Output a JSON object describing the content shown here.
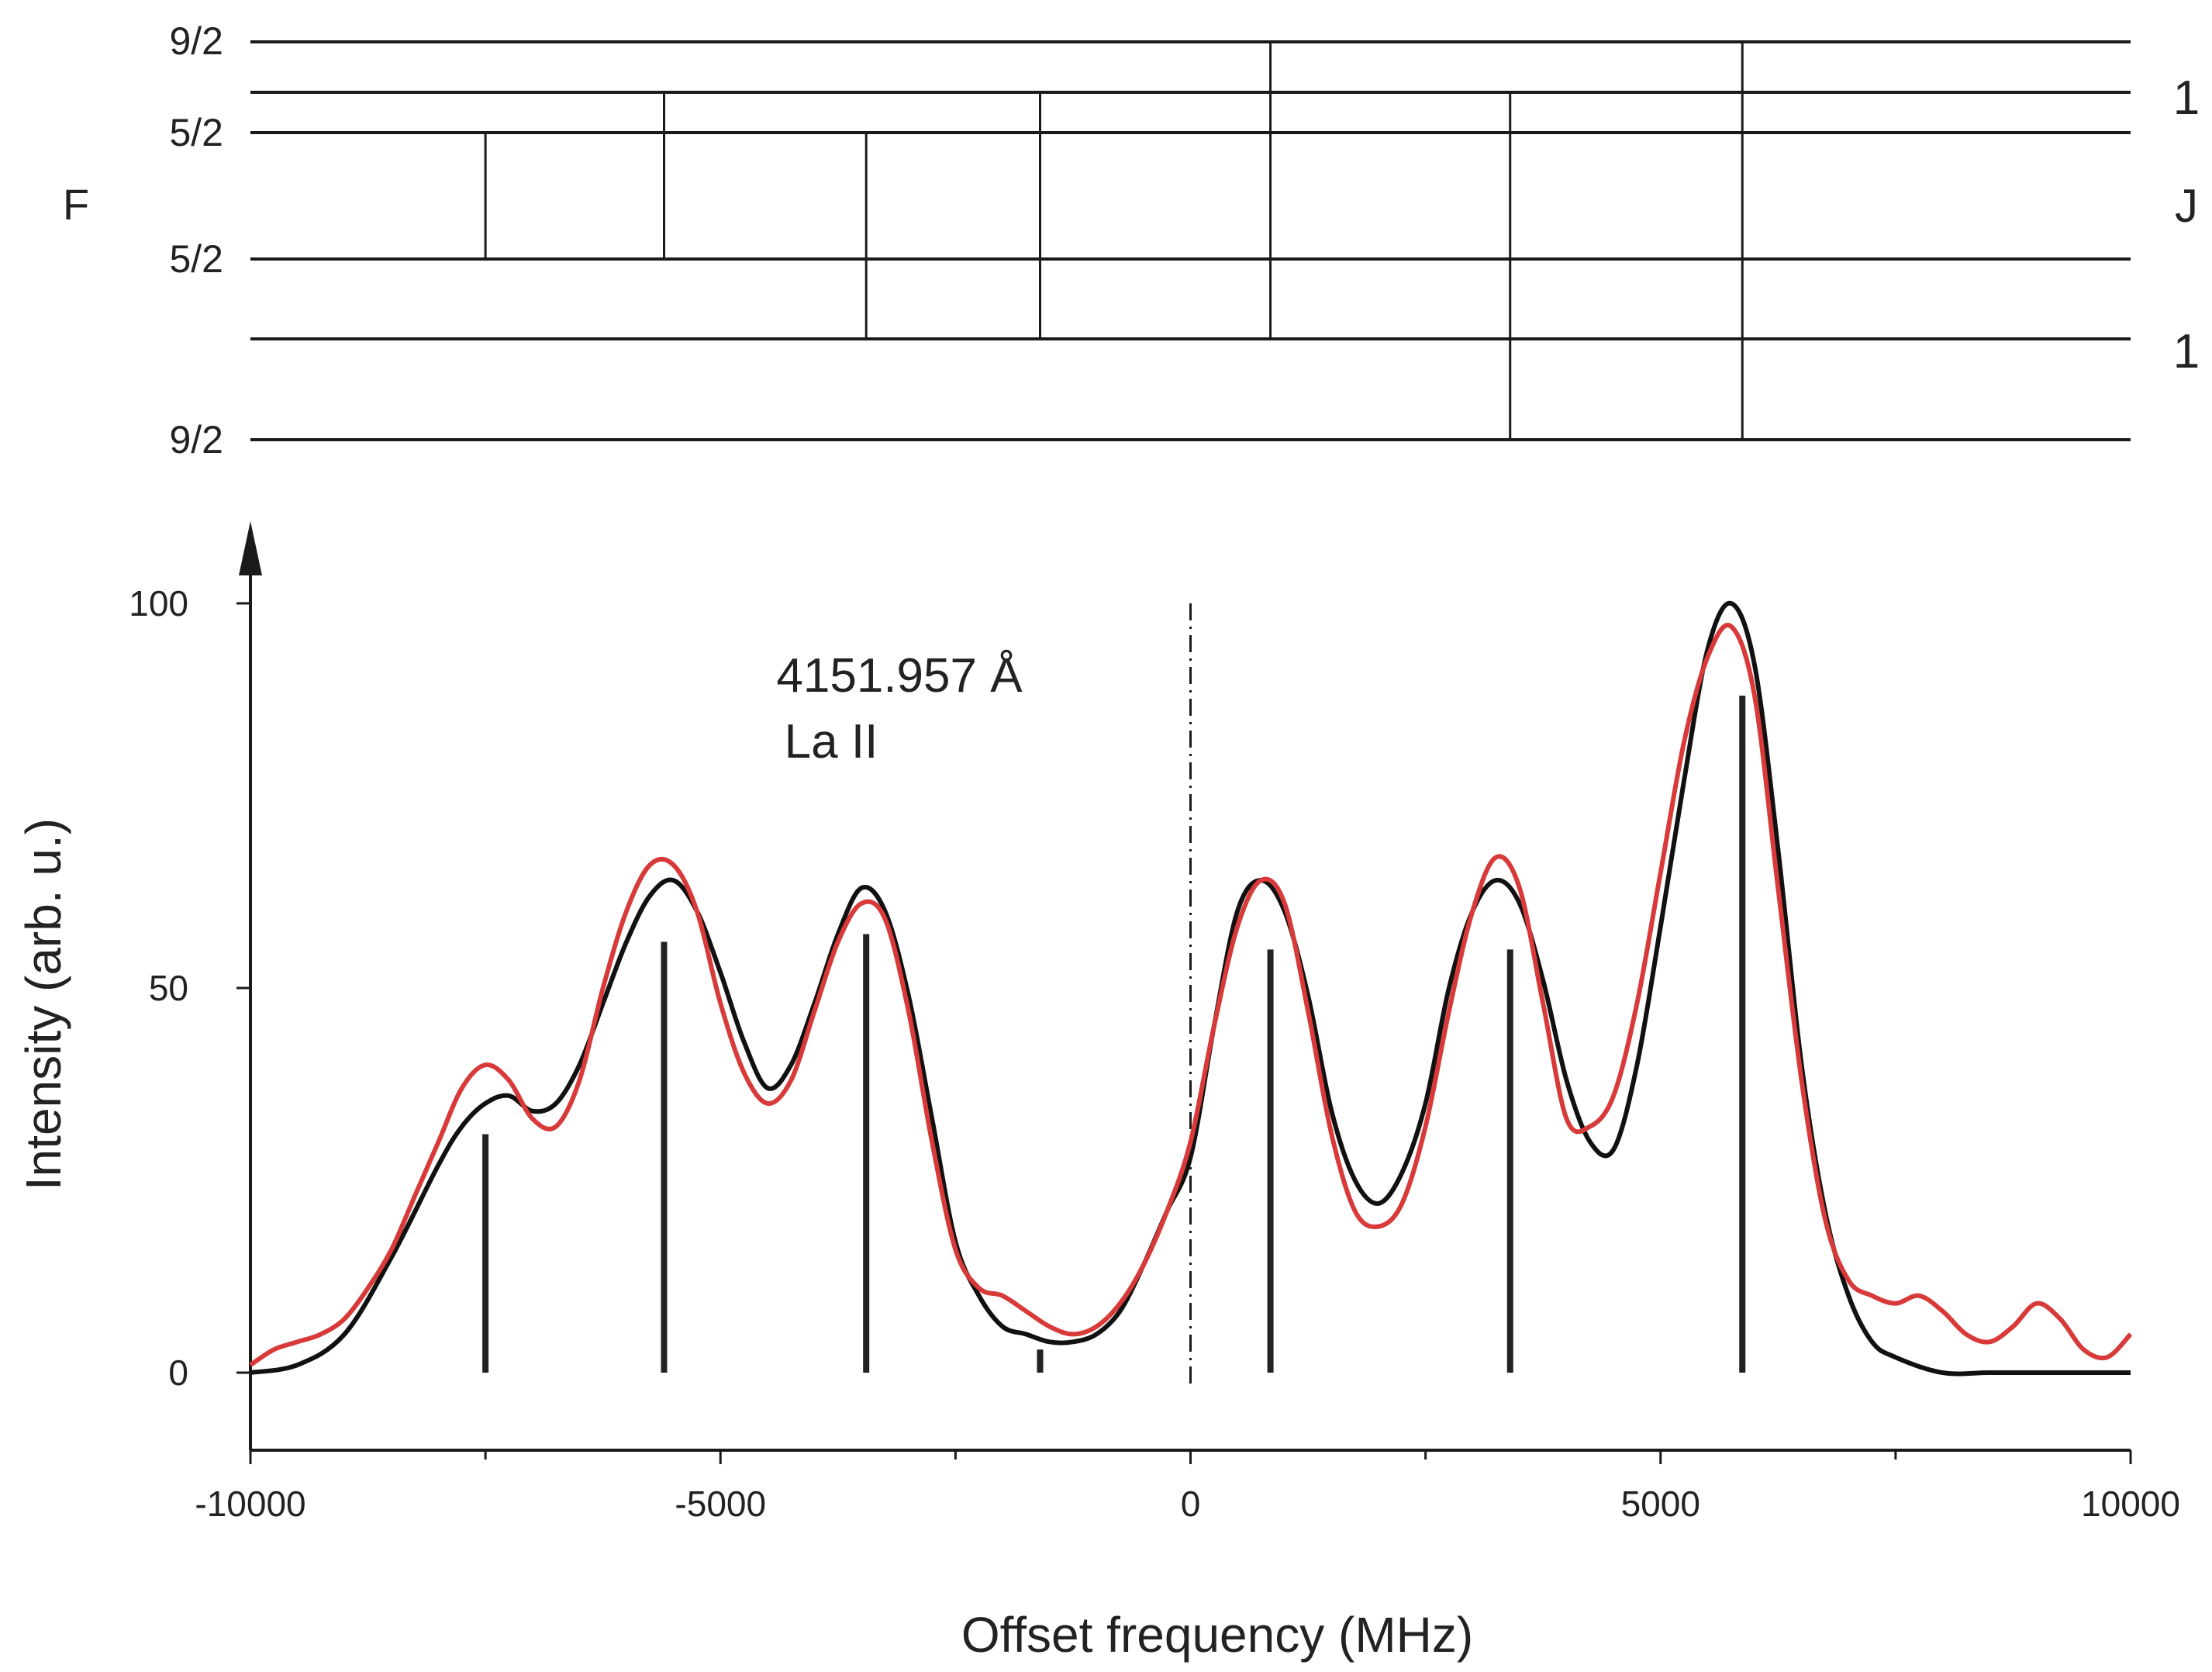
{
  "level_diagram": {
    "left_axis_title": "F",
    "right_axis_title": "J",
    "upper_labels": {
      "top": "9/2",
      "bottom": "5/2"
    },
    "lower_labels": {
      "top": "5/2",
      "bottom": "9/2"
    },
    "upper_J": "1",
    "lower_J": "1"
  },
  "annotation": {
    "line1": "4151.957 Å",
    "line2": "La II"
  },
  "chart_data": {
    "type": "line",
    "xlabel": "Offset frequency (MHz)",
    "ylabel": "Intensity (arb. u.)",
    "xlim": [
      -10000,
      10000
    ],
    "ylim": [
      -9,
      100
    ],
    "x_ticks": [
      -10000,
      -5000,
      0,
      5000,
      10000
    ],
    "x_ticklabels": [
      "-10000",
      "-5000",
      "0",
      "5000",
      "10000"
    ],
    "y_ticks": [
      0,
      50,
      100
    ],
    "y_ticklabels": [
      "0",
      "50",
      "100"
    ],
    "reference_line_x": 0,
    "colors": {
      "fit": "#111111",
      "measured": "#d83a3a",
      "sticks": "#222222"
    },
    "stick_spectrum": [
      {
        "x": -7500,
        "y": 31
      },
      {
        "x": -5600,
        "y": 56
      },
      {
        "x": -3450,
        "y": 57
      },
      {
        "x": -1600,
        "y": 3
      },
      {
        "x": 850,
        "y": 55
      },
      {
        "x": 3400,
        "y": 55
      },
      {
        "x": 5870,
        "y": 88
      }
    ],
    "series": [
      {
        "color": "#111111",
        "x": [
          -10000,
          -9500,
          -9000,
          -8500,
          -8000,
          -7750,
          -7500,
          -7250,
          -7000,
          -6750,
          -6500,
          -6250,
          -6000,
          -5750,
          -5500,
          -5250,
          -5000,
          -4750,
          -4500,
          -4250,
          -4000,
          -3750,
          -3500,
          -3250,
          -3000,
          -2750,
          -2500,
          -2250,
          -2000,
          -1750,
          -1500,
          -1250,
          -1000,
          -750,
          -500,
          -250,
          0,
          250,
          500,
          750,
          1000,
          1250,
          1500,
          1750,
          2000,
          2250,
          2500,
          2750,
          3000,
          3250,
          3500,
          3750,
          4000,
          4250,
          4500,
          4750,
          5000,
          5250,
          5500,
          5750,
          6000,
          6250,
          6500,
          6750,
          7000,
          7250,
          7500,
          8000,
          8500,
          9000,
          9500,
          10000
        ],
        "y": [
          0,
          1,
          5,
          15,
          27,
          32,
          35,
          36,
          34,
          35,
          40,
          48,
          56,
          62,
          64,
          60,
          52,
          43,
          37,
          40,
          48,
          57,
          63,
          60,
          49,
          33,
          17,
          10,
          6,
          5,
          4,
          4,
          5,
          8,
          14,
          21,
          28,
          45,
          60,
          64,
          60,
          49,
          34,
          25,
          22,
          26,
          35,
          50,
          60,
          64,
          61,
          51,
          38,
          30,
          29,
          40,
          58,
          77,
          94,
          100,
          92,
          68,
          40,
          21,
          10,
          4,
          2,
          0,
          0,
          0,
          0,
          0
        ]
      },
      {
        "color": "#d83a3a",
        "x": [
          -10000,
          -9750,
          -9500,
          -9250,
          -9000,
          -8750,
          -8500,
          -8250,
          -8000,
          -7750,
          -7500,
          -7250,
          -7000,
          -6750,
          -6500,
          -6250,
          -6000,
          -5750,
          -5500,
          -5250,
          -5000,
          -4750,
          -4500,
          -4250,
          -4000,
          -3750,
          -3500,
          -3250,
          -3000,
          -2750,
          -2500,
          -2250,
          -2000,
          -1750,
          -1500,
          -1250,
          -1000,
          -750,
          -500,
          -250,
          0,
          250,
          500,
          750,
          1000,
          1250,
          1500,
          1750,
          2000,
          2250,
          2500,
          2750,
          3000,
          3250,
          3500,
          3750,
          4000,
          4250,
          4500,
          4750,
          5000,
          5250,
          5500,
          5750,
          6000,
          6250,
          6500,
          6750,
          7000,
          7250,
          7500,
          7750,
          8000,
          8250,
          8500,
          8750,
          9000,
          9250,
          9500,
          9750,
          10000
        ],
        "y": [
          1,
          3,
          4,
          5,
          7,
          11,
          16,
          23,
          30,
          37,
          40,
          38,
          33,
          32,
          38,
          50,
          60,
          66,
          66,
          60,
          48,
          39,
          35,
          38,
          47,
          56,
          61,
          59,
          47,
          30,
          16,
          11,
          10,
          8,
          6,
          5,
          6,
          9,
          14,
          21,
          30,
          45,
          58,
          64,
          61,
          47,
          31,
          21,
          19,
          22,
          32,
          47,
          60,
          67,
          63,
          48,
          33,
          32,
          36,
          48,
          65,
          82,
          93,
          97,
          88,
          63,
          38,
          20,
          12,
          10,
          9,
          10,
          8,
          5,
          4,
          6,
          9,
          7,
          3,
          2,
          5
        ]
      }
    ]
  }
}
